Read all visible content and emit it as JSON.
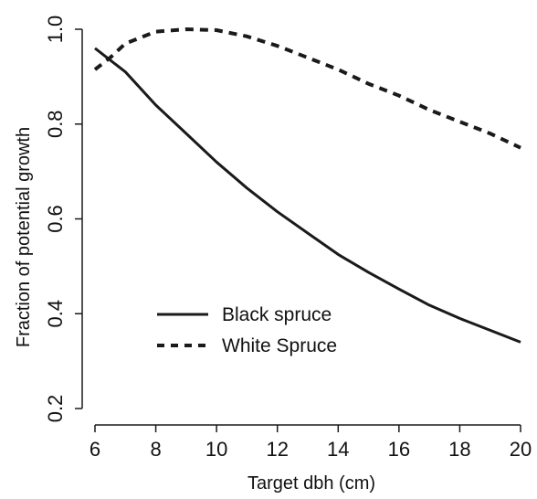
{
  "chart_data": {
    "type": "line",
    "title": "",
    "xlabel": "Target dbh (cm)",
    "ylabel": "Fraction of potential growth",
    "xlim": [
      6,
      20
    ],
    "ylim": [
      0.2,
      1.0
    ],
    "x_ticks": [
      6,
      8,
      10,
      12,
      14,
      16,
      18,
      20
    ],
    "x_tick_labels": [
      "6",
      "8",
      "10",
      "12",
      "14",
      "16",
      "18",
      "20"
    ],
    "y_ticks": [
      0.2,
      0.4,
      0.6,
      0.8,
      1.0
    ],
    "y_tick_labels": [
      "0.2",
      "0.4",
      "0.6",
      "0.8",
      "1.0"
    ],
    "grid": false,
    "legend_position": "bottom-left",
    "series": [
      {
        "name": "Black spruce",
        "line_style": "solid",
        "color": "#1a1a1a",
        "x": [
          6,
          7,
          8,
          9,
          10,
          11,
          12,
          13,
          14,
          15,
          16,
          17,
          18,
          19,
          20
        ],
        "y": [
          0.96,
          0.91,
          0.84,
          0.78,
          0.72,
          0.665,
          0.615,
          0.57,
          0.525,
          0.487,
          0.452,
          0.418,
          0.39,
          0.365,
          0.34
        ]
      },
      {
        "name": "White Spruce",
        "line_style": "dashed",
        "color": "#1a1a1a",
        "x": [
          6,
          6.5,
          7,
          8,
          9,
          10,
          11,
          12,
          13,
          14,
          15,
          16,
          17,
          18,
          19,
          20
        ],
        "y": [
          0.915,
          0.94,
          0.97,
          0.995,
          1.0,
          0.998,
          0.985,
          0.965,
          0.94,
          0.915,
          0.885,
          0.86,
          0.83,
          0.805,
          0.78,
          0.75
        ]
      }
    ]
  }
}
